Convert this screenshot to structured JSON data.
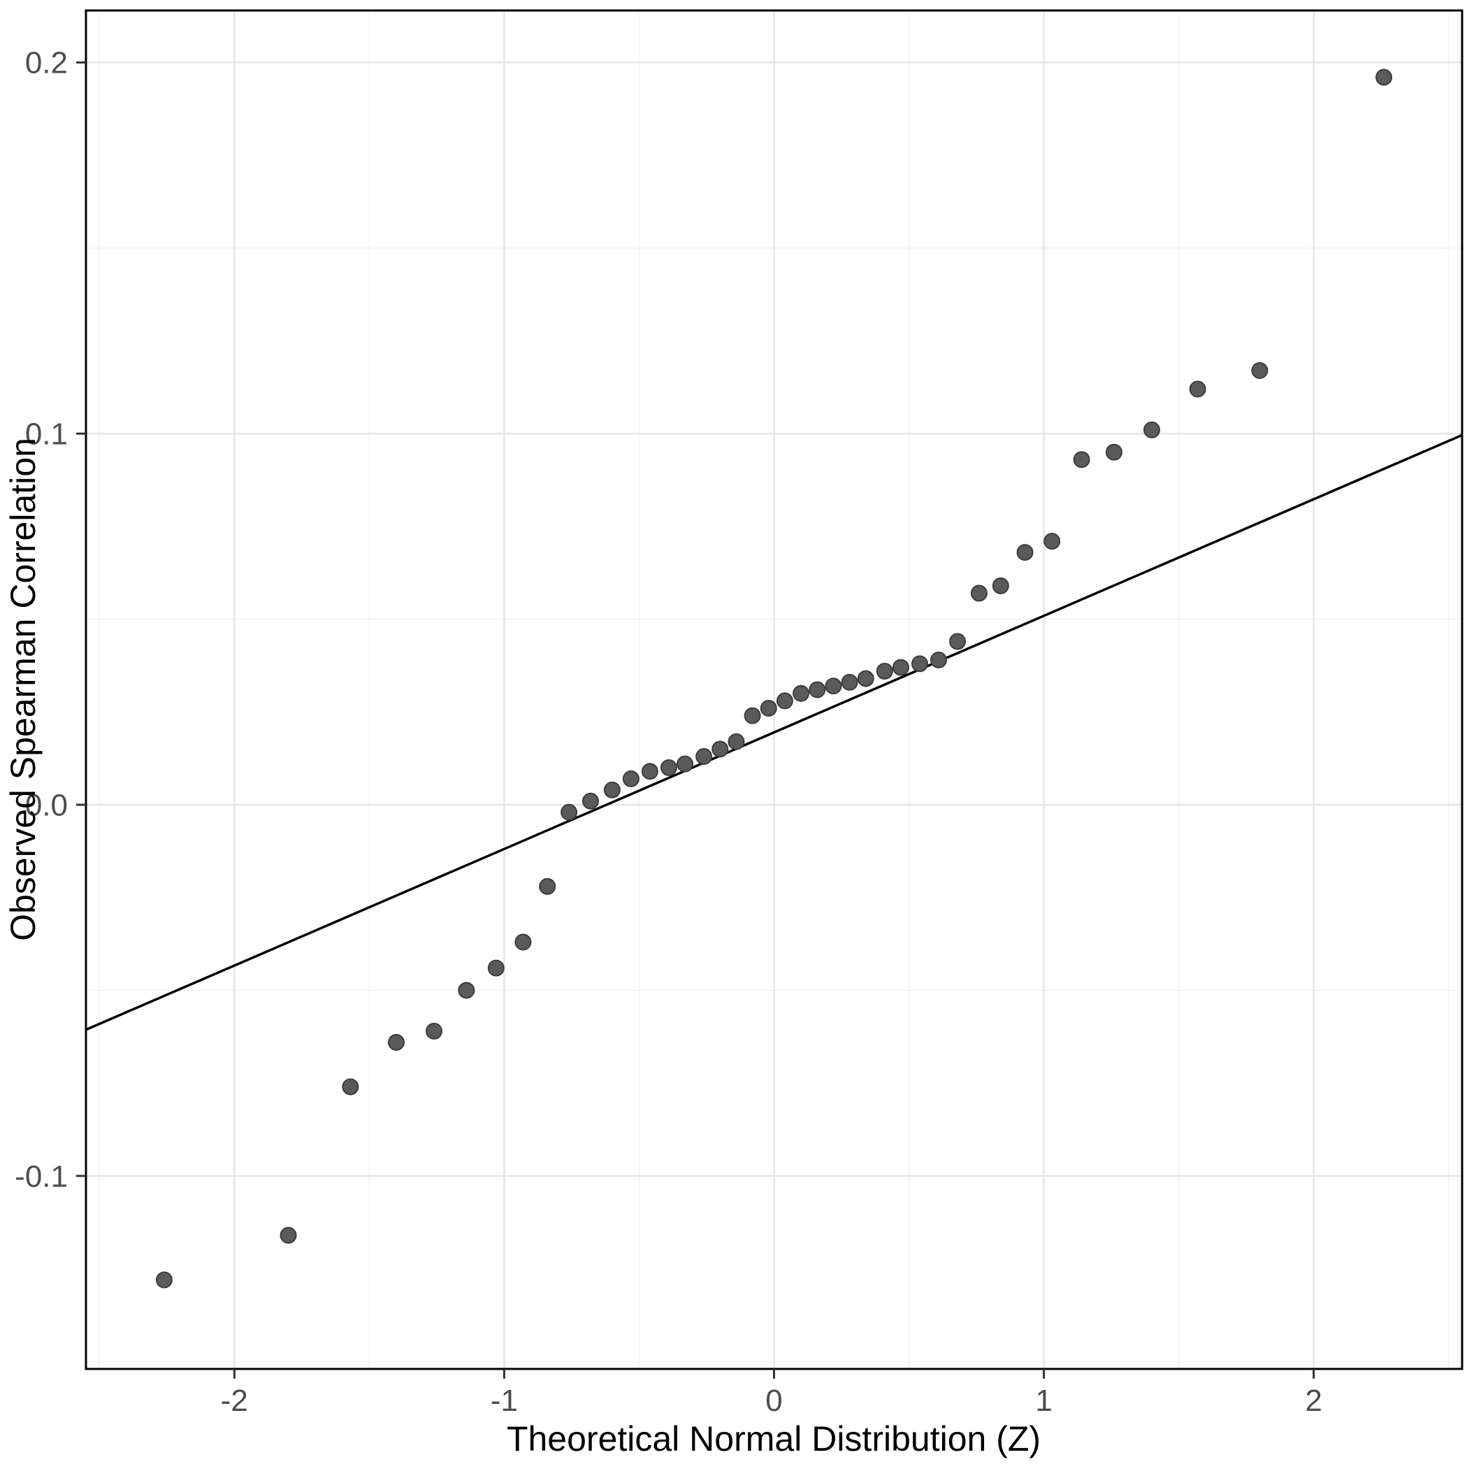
{
  "chart_data": {
    "type": "scatter",
    "title": "",
    "xlabel": "Theoretical Normal Distribution (Z)",
    "ylabel": "Observed Spearman Correlation",
    "xlim": [
      -2.55,
      2.55
    ],
    "ylim": [
      -0.152,
      0.214
    ],
    "grid": true,
    "legend": "none",
    "point_color": "#5a5a5a",
    "point_stroke": "#3c3c3c",
    "line_color": "#000000",
    "grid_major_color": "#e5e5e5",
    "grid_minor_color": "#f2f2f2",
    "panel_border_color": "#000000",
    "tick_color": "#333333",
    "tick_label_color": "#4d4d4d",
    "x_ticks": [
      {
        "value": -2,
        "label": "-2"
      },
      {
        "value": -1,
        "label": "-1"
      },
      {
        "value": 0,
        "label": "0"
      },
      {
        "value": 1,
        "label": "1"
      },
      {
        "value": 2,
        "label": "2"
      }
    ],
    "y_ticks": [
      {
        "value": -0.1,
        "label": "-0.1"
      },
      {
        "value": 0.0,
        "label": "0.0"
      },
      {
        "value": 0.1,
        "label": "0.1"
      },
      {
        "value": 0.2,
        "label": "0.2"
      }
    ],
    "x_minor_ticks": [
      -2.5,
      -1.5,
      -0.5,
      0.5,
      1.5,
      2.5
    ],
    "y_minor_ticks": [
      -0.15,
      -0.05,
      0.05,
      0.15
    ],
    "reference_line": {
      "x1": -2.55,
      "y1": -0.0606,
      "x2": 2.55,
      "y2": 0.0996
    },
    "points": [
      [
        -2.26,
        -0.128
      ],
      [
        -1.8,
        -0.116
      ],
      [
        -1.57,
        -0.076
      ],
      [
        -1.4,
        -0.064
      ],
      [
        -1.26,
        -0.061
      ],
      [
        -1.14,
        -0.05
      ],
      [
        -1.03,
        -0.044
      ],
      [
        -0.93,
        -0.037
      ],
      [
        -0.84,
        -0.022
      ],
      [
        -0.76,
        -0.002
      ],
      [
        -0.68,
        0.001
      ],
      [
        -0.6,
        0.004
      ],
      [
        -0.53,
        0.007
      ],
      [
        -0.46,
        0.009
      ],
      [
        -0.39,
        0.01
      ],
      [
        -0.33,
        0.011
      ],
      [
        -0.26,
        0.013
      ],
      [
        -0.2,
        0.015
      ],
      [
        -0.14,
        0.017
      ],
      [
        -0.08,
        0.024
      ],
      [
        -0.02,
        0.026
      ],
      [
        0.04,
        0.028
      ],
      [
        0.1,
        0.03
      ],
      [
        0.16,
        0.031
      ],
      [
        0.22,
        0.032
      ],
      [
        0.28,
        0.033
      ],
      [
        0.34,
        0.034
      ],
      [
        0.41,
        0.036
      ],
      [
        0.47,
        0.037
      ],
      [
        0.54,
        0.038
      ],
      [
        0.61,
        0.039
      ],
      [
        0.68,
        0.044
      ],
      [
        0.76,
        0.057
      ],
      [
        0.84,
        0.059
      ],
      [
        0.93,
        0.068
      ],
      [
        1.03,
        0.071
      ],
      [
        1.14,
        0.093
      ],
      [
        1.26,
        0.095
      ],
      [
        1.4,
        0.101
      ],
      [
        1.57,
        0.112
      ],
      [
        1.8,
        0.117
      ],
      [
        2.26,
        0.196
      ]
    ]
  }
}
